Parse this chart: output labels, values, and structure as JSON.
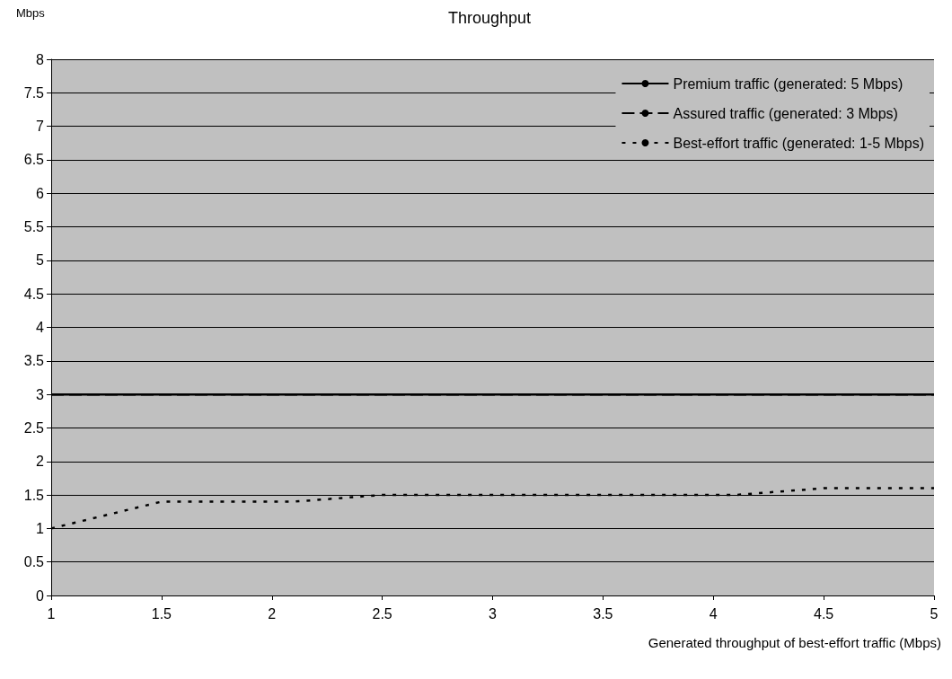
{
  "chart_data": {
    "type": "line",
    "title": "Throughput",
    "ylabel": "Mbps",
    "xlabel": "Generated throughput of best-effort traffic (Mbps)",
    "xlim": [
      1,
      5
    ],
    "xticks": [
      1,
      1.5,
      2,
      2.5,
      3,
      3.5,
      4,
      4.5,
      5
    ],
    "ylim": [
      0,
      8
    ],
    "yticks": [
      0,
      0.5,
      1,
      1.5,
      2,
      2.5,
      3,
      3.5,
      4,
      4.5,
      5,
      5.5,
      6,
      6.5,
      7,
      7.5,
      8
    ],
    "grid": "y",
    "legend": "top right",
    "marker": "none",
    "series": [
      {
        "name": "Premium traffic (generated: 5 Mbps)",
        "color": "#000000",
        "line_style": "solid",
        "x": [
          1,
          5
        ],
        "values": [
          3,
          3
        ]
      },
      {
        "name": "Assured traffic (generated: 3 Mbps)",
        "color": "#000000",
        "line_style": "dashed",
        "x": [
          1,
          5
        ],
        "values": [
          3,
          3
        ]
      },
      {
        "name": "Best-effort traffic (generated: 1-5 Mbps)",
        "color": "#000000",
        "line_style": "dotted",
        "x": [
          1,
          1.5,
          2.1,
          2.5,
          4.1,
          4.5,
          5
        ],
        "values": [
          1,
          1.4,
          1.4,
          1.5,
          1.5,
          1.6,
          1.6
        ]
      }
    ]
  }
}
